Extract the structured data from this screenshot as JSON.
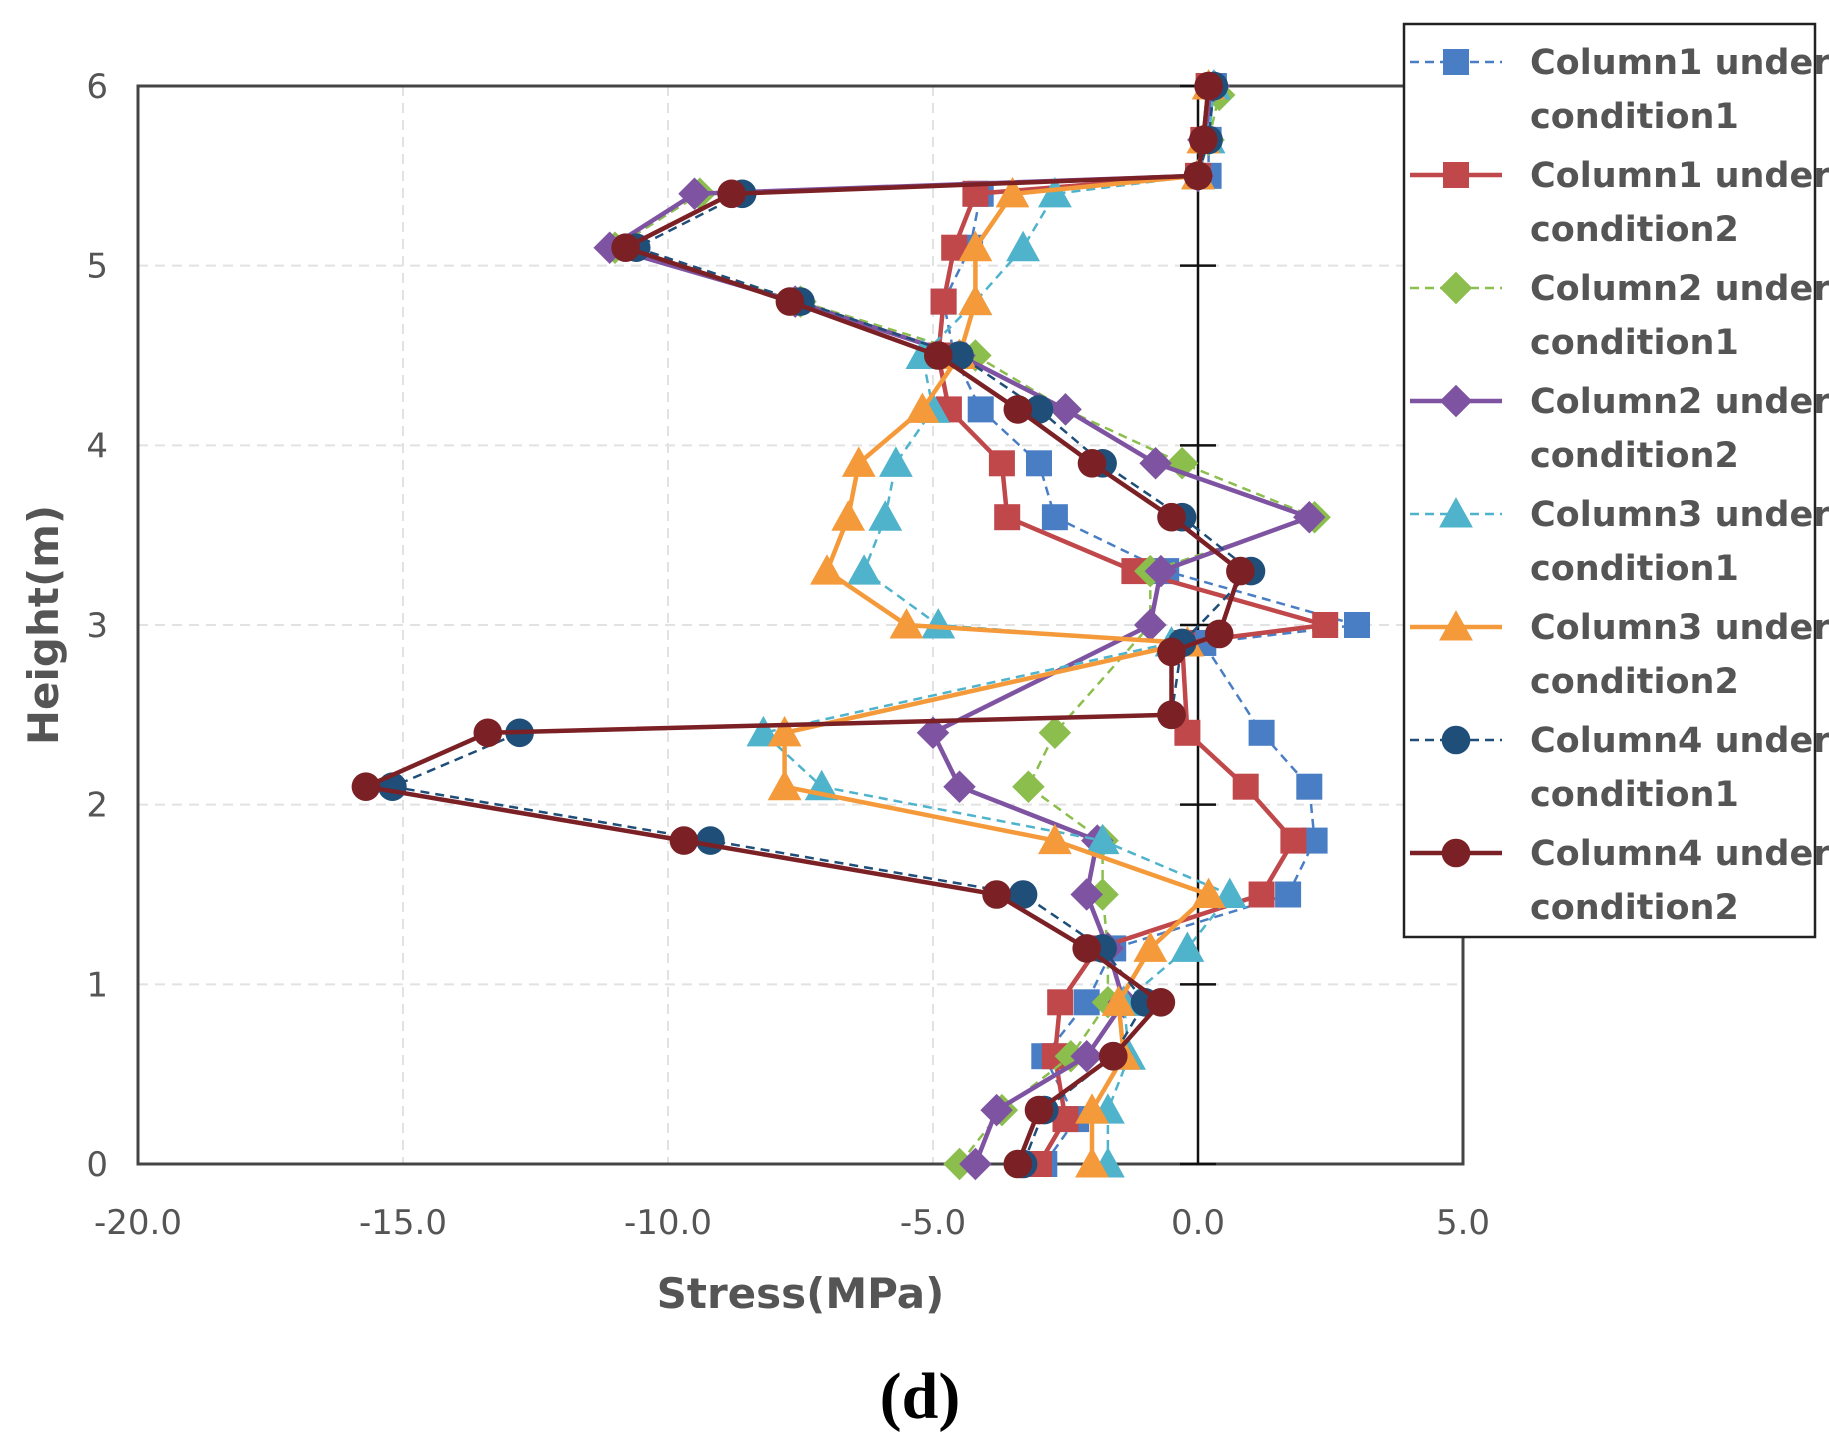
{
  "chart_data": {
    "type": "line",
    "title": "",
    "xlabel": "Stress(MPa)",
    "ylabel": "Height(m)",
    "xlim": [
      -20.0,
      5.0
    ],
    "ylim": [
      0,
      6
    ],
    "xticks": [
      -20.0,
      -15.0,
      -10.0,
      -5.0,
      0.0,
      5.0
    ],
    "xtick_labels": [
      "-20.0",
      "-15.0",
      "-10.0",
      "-5.0",
      "0.0",
      "5.0"
    ],
    "yticks": [
      0,
      1,
      2,
      3,
      4,
      5,
      6
    ],
    "ytick_labels": [
      "0",
      "1",
      "2",
      "3",
      "4",
      "5",
      "6"
    ],
    "grid": true,
    "legend_position": "right",
    "panel_label": "(d)",
    "series": [
      {
        "name": "Column1 under condition1",
        "legend_lines": [
          "Column1 under",
          "condition1"
        ],
        "color": "#4A7EC4",
        "marker": "square",
        "dashed": true,
        "points": [
          [
            -2.9,
            0
          ],
          [
            -2.3,
            0.25
          ],
          [
            -2.9,
            0.6
          ],
          [
            -2.1,
            0.9
          ],
          [
            -1.6,
            1.2
          ],
          [
            1.7,
            1.5
          ],
          [
            2.2,
            1.8
          ],
          [
            2.1,
            2.1
          ],
          [
            1.2,
            2.4
          ],
          [
            0.1,
            2.9
          ],
          [
            3.0,
            3.0
          ],
          [
            -0.6,
            3.3
          ],
          [
            -2.7,
            3.6
          ],
          [
            -3.0,
            3.9
          ],
          [
            -4.1,
            4.2
          ],
          [
            -4.6,
            4.5
          ],
          [
            -4.8,
            4.8
          ],
          [
            -4.3,
            5.1
          ],
          [
            -4.1,
            5.4
          ],
          [
            0.2,
            5.5
          ],
          [
            0.2,
            5.7
          ],
          [
            0.3,
            6.0
          ]
        ]
      },
      {
        "name": "Column1 under condition2",
        "legend_lines": [
          "Column1 under",
          "condition2"
        ],
        "color": "#C0474A",
        "marker": "square",
        "dashed": false,
        "points": [
          [
            -3.0,
            0
          ],
          [
            -2.5,
            0.25
          ],
          [
            -2.7,
            0.6
          ],
          [
            -2.6,
            0.9
          ],
          [
            -1.9,
            1.2
          ],
          [
            1.2,
            1.5
          ],
          [
            1.8,
            1.8
          ],
          [
            0.9,
            2.1
          ],
          [
            -0.2,
            2.4
          ],
          [
            -0.3,
            2.9
          ],
          [
            2.4,
            3.0
          ],
          [
            -1.2,
            3.3
          ],
          [
            -3.6,
            3.6
          ],
          [
            -3.7,
            3.9
          ],
          [
            -4.7,
            4.2
          ],
          [
            -4.9,
            4.5
          ],
          [
            -4.8,
            4.8
          ],
          [
            -4.6,
            5.1
          ],
          [
            -4.2,
            5.4
          ],
          [
            0.0,
            5.5
          ],
          [
            0.1,
            5.7
          ],
          [
            0.2,
            6.0
          ]
        ]
      },
      {
        "name": "Column2 under condition1",
        "legend_lines": [
          "Column2 under",
          "condition1"
        ],
        "color": "#8CBE4E",
        "marker": "diamond",
        "dashed": true,
        "points": [
          [
            -4.5,
            0
          ],
          [
            -3.7,
            0.3
          ],
          [
            -2.4,
            0.6
          ],
          [
            -1.7,
            0.9
          ],
          [
            -1.7,
            1.2
          ],
          [
            -1.8,
            1.5
          ],
          [
            -1.8,
            1.8
          ],
          [
            -3.2,
            2.1
          ],
          [
            -2.7,
            2.4
          ],
          [
            -0.9,
            3.0
          ],
          [
            -0.9,
            3.3
          ],
          [
            2.2,
            3.6
          ],
          [
            -0.3,
            3.9
          ],
          [
            -2.5,
            4.2
          ],
          [
            -4.2,
            4.5
          ],
          [
            -7.5,
            4.8
          ],
          [
            -11.0,
            5.1
          ],
          [
            -9.4,
            5.4
          ],
          [
            0.0,
            5.5
          ],
          [
            0.2,
            5.7
          ],
          [
            0.4,
            5.95
          ]
        ]
      },
      {
        "name": "Column2 under condition2",
        "legend_lines": [
          "Column2 under",
          "condition2"
        ],
        "color": "#7E54A2",
        "marker": "diamond",
        "dashed": false,
        "points": [
          [
            -4.2,
            0
          ],
          [
            -3.8,
            0.3
          ],
          [
            -2.1,
            0.6
          ],
          [
            -1.4,
            0.9
          ],
          [
            -1.7,
            1.2
          ],
          [
            -2.1,
            1.5
          ],
          [
            -1.9,
            1.8
          ],
          [
            -4.5,
            2.1
          ],
          [
            -5.0,
            2.4
          ],
          [
            -0.9,
            3.0
          ],
          [
            -0.7,
            3.3
          ],
          [
            2.1,
            3.6
          ],
          [
            -0.8,
            3.9
          ],
          [
            -2.5,
            4.2
          ],
          [
            -4.5,
            4.5
          ],
          [
            -7.6,
            4.8
          ],
          [
            -11.1,
            5.1
          ],
          [
            -9.5,
            5.4
          ],
          [
            0.0,
            5.5
          ],
          [
            0.1,
            5.7
          ],
          [
            0.3,
            6.0
          ]
        ]
      },
      {
        "name": "Column3 under condition1",
        "legend_lines": [
          "Column3 under",
          "condition1"
        ],
        "color": "#4FB3CC",
        "marker": "triangle",
        "dashed": true,
        "points": [
          [
            -1.7,
            0
          ],
          [
            -1.7,
            0.3
          ],
          [
            -1.3,
            0.6
          ],
          [
            -1.4,
            0.9
          ],
          [
            -0.2,
            1.2
          ],
          [
            0.6,
            1.5
          ],
          [
            -1.8,
            1.8
          ],
          [
            -7.1,
            2.1
          ],
          [
            -8.2,
            2.4
          ],
          [
            -0.5,
            2.9
          ],
          [
            -4.9,
            3.0
          ],
          [
            -6.3,
            3.3
          ],
          [
            -5.9,
            3.6
          ],
          [
            -5.7,
            3.9
          ],
          [
            -5.0,
            4.2
          ],
          [
            -5.2,
            4.5
          ],
          [
            -4.2,
            4.8
          ],
          [
            -3.3,
            5.1
          ],
          [
            -2.7,
            5.4
          ],
          [
            0.0,
            5.5
          ],
          [
            0.2,
            5.7
          ],
          [
            0.3,
            6.0
          ]
        ]
      },
      {
        "name": "Column3 under condition2",
        "legend_lines": [
          "Column3 under",
          "condition2"
        ],
        "color": "#F59A3A",
        "marker": "triangle",
        "dashed": false,
        "points": [
          [
            -2.0,
            0
          ],
          [
            -2.0,
            0.3
          ],
          [
            -1.4,
            0.6
          ],
          [
            -1.5,
            0.9
          ],
          [
            -0.9,
            1.2
          ],
          [
            0.2,
            1.5
          ],
          [
            -2.7,
            1.8
          ],
          [
            -7.8,
            2.1
          ],
          [
            -7.8,
            2.4
          ],
          [
            -0.2,
            2.9
          ],
          [
            -5.5,
            3.0
          ],
          [
            -7.0,
            3.3
          ],
          [
            -6.6,
            3.6
          ],
          [
            -6.4,
            3.9
          ],
          [
            -5.2,
            4.2
          ],
          [
            -4.5,
            4.5
          ],
          [
            -4.2,
            4.8
          ],
          [
            -4.2,
            5.1
          ],
          [
            -3.5,
            5.4
          ],
          [
            0.0,
            5.5
          ],
          [
            0.1,
            5.7
          ],
          [
            0.2,
            6.0
          ]
        ]
      },
      {
        "name": "Column4 under condition1",
        "legend_lines": [
          "Column4 under",
          "condition1"
        ],
        "color": "#1F4E79",
        "marker": "circle",
        "dashed": true,
        "points": [
          [
            -3.3,
            0
          ],
          [
            -2.9,
            0.3
          ],
          [
            -1.6,
            0.6
          ],
          [
            -1.0,
            0.9
          ],
          [
            -1.8,
            1.2
          ],
          [
            -3.3,
            1.5
          ],
          [
            -9.2,
            1.8
          ],
          [
            -15.2,
            2.1
          ],
          [
            -12.8,
            2.4
          ],
          [
            -0.5,
            2.5
          ],
          [
            -0.3,
            2.9
          ],
          [
            1.0,
            3.3
          ],
          [
            -0.3,
            3.6
          ],
          [
            -1.8,
            3.9
          ],
          [
            -3.0,
            4.2
          ],
          [
            -4.5,
            4.5
          ],
          [
            -7.5,
            4.8
          ],
          [
            -10.6,
            5.1
          ],
          [
            -8.6,
            5.4
          ],
          [
            0.0,
            5.5
          ],
          [
            0.2,
            5.7
          ],
          [
            0.3,
            6.0
          ]
        ]
      },
      {
        "name": "Column4 under condition2",
        "legend_lines": [
          "Column4 under",
          "condition2"
        ],
        "color": "#7B2125",
        "marker": "circle",
        "dashed": false,
        "points": [
          [
            -3.4,
            0
          ],
          [
            -3.0,
            0.3
          ],
          [
            -1.6,
            0.6
          ],
          [
            -0.7,
            0.9
          ],
          [
            -2.1,
            1.2
          ],
          [
            -3.8,
            1.5
          ],
          [
            -9.7,
            1.8
          ],
          [
            -15.7,
            2.1
          ],
          [
            -13.4,
            2.4
          ],
          [
            -0.5,
            2.5
          ],
          [
            -0.5,
            2.85
          ],
          [
            0.4,
            2.95
          ],
          [
            0.8,
            3.3
          ],
          [
            -0.5,
            3.6
          ],
          [
            -2.0,
            3.9
          ],
          [
            -3.4,
            4.2
          ],
          [
            -4.9,
            4.5
          ],
          [
            -7.7,
            4.8
          ],
          [
            -10.8,
            5.1
          ],
          [
            -8.8,
            5.4
          ],
          [
            0.0,
            5.5
          ],
          [
            0.1,
            5.7
          ],
          [
            0.2,
            6.0
          ]
        ]
      }
    ]
  }
}
